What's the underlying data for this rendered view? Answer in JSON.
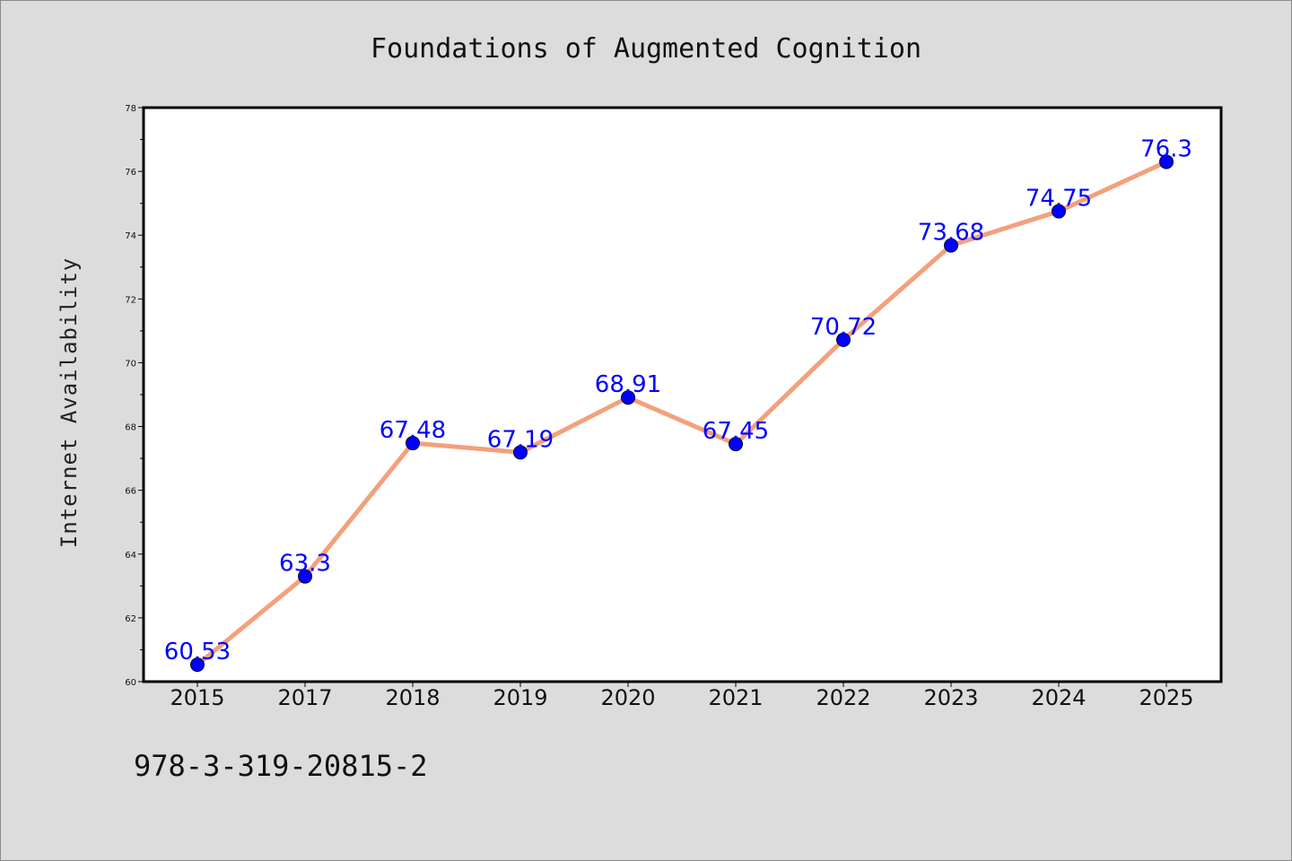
{
  "chart_data": {
    "type": "line",
    "title": "Foundations of Augmented Cognition",
    "xlabel": "",
    "ylabel": "Internet Availability",
    "categories": [
      "2015",
      "2017",
      "2018",
      "2019",
      "2020",
      "2021",
      "2022",
      "2023",
      "2024",
      "2025"
    ],
    "values": [
      60.53,
      63.3,
      67.48,
      67.19,
      68.91,
      67.45,
      70.72,
      73.68,
      74.75,
      76.3
    ],
    "data_labels": [
      "60.53",
      "63.3",
      "67.48",
      "67.19",
      "68.91",
      "67.45",
      "70.72",
      "73.68",
      "74.75",
      "76.3"
    ],
    "ylim": [
      60,
      78
    ],
    "yticks": [
      60,
      62,
      64,
      66,
      68,
      70,
      72,
      74,
      76,
      78
    ],
    "grid": false,
    "legend": "none",
    "line_color": "#f4a07c",
    "marker_color": "#0000ff",
    "label_color": "#0000ff"
  },
  "footnote": "978-3-319-20815-2"
}
